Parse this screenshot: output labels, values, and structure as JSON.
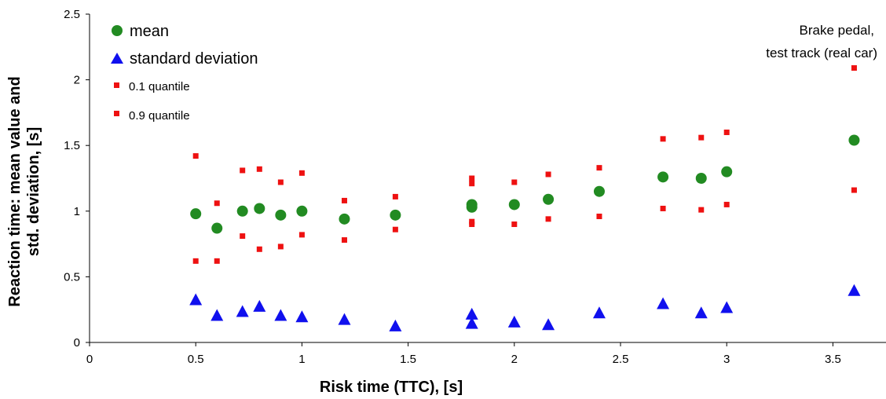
{
  "chart_data": {
    "type": "scatter",
    "xlabel": "Risk time (TTC), [s]",
    "ylabel_lines": [
      "Reaction time: mean value and",
      "std. deviation, [s]"
    ],
    "xlim": [
      0,
      3.75
    ],
    "ylim": [
      0,
      2.5
    ],
    "xticks": [
      "0",
      "0.5",
      "1",
      "1.5",
      "2",
      "2.5",
      "3",
      "3.5"
    ],
    "yticks": [
      "0",
      "0.5",
      "1",
      "1.5",
      "2",
      "2.5"
    ],
    "grid": false,
    "legend_position": "top-left",
    "annotation_lines": [
      "Brake pedal,",
      "test track (real car)"
    ],
    "series": [
      {
        "name": "mean",
        "marker": "circle",
        "color": "#228B22",
        "x": [
          0.5,
          0.6,
          0.72,
          0.8,
          0.9,
          1.0,
          1.2,
          1.44,
          1.8,
          1.8,
          2.0,
          2.16,
          2.4,
          2.7,
          2.88,
          3.0,
          3.6
        ],
        "y": [
          0.98,
          0.87,
          1.0,
          1.02,
          0.97,
          1.0,
          0.94,
          0.97,
          1.05,
          1.03,
          1.05,
          1.09,
          1.15,
          1.26,
          1.25,
          1.3,
          1.54
        ]
      },
      {
        "name": "standard deviation",
        "marker": "triangle",
        "color": "#1010EE",
        "x": [
          0.5,
          0.6,
          0.72,
          0.8,
          0.9,
          1.0,
          1.2,
          1.44,
          1.8,
          1.8,
          2.0,
          2.16,
          2.4,
          2.7,
          2.88,
          3.0,
          3.6
        ],
        "y": [
          0.32,
          0.2,
          0.23,
          0.27,
          0.2,
          0.19,
          0.17,
          0.12,
          0.21,
          0.14,
          0.15,
          0.13,
          0.22,
          0.29,
          0.22,
          0.26,
          0.39
        ]
      },
      {
        "name": "0.1 quantile",
        "marker": "square",
        "color": "#EE1111",
        "x": [
          0.5,
          0.6,
          0.72,
          0.8,
          0.9,
          1.0,
          1.2,
          1.44,
          1.8,
          1.8,
          2.0,
          2.16,
          2.4,
          2.7,
          2.88,
          3.0,
          3.6
        ],
        "y": [
          0.62,
          0.62,
          0.81,
          0.71,
          0.73,
          0.82,
          0.78,
          0.86,
          0.9,
          0.92,
          0.9,
          0.94,
          0.96,
          1.02,
          1.01,
          1.05,
          1.16
        ]
      },
      {
        "name": "0.9 quantile",
        "marker": "square",
        "color": "#EE1111",
        "x": [
          0.5,
          0.6,
          0.72,
          0.8,
          0.9,
          1.0,
          1.2,
          1.44,
          1.8,
          1.8,
          2.0,
          2.16,
          2.4,
          2.7,
          2.88,
          3.0,
          3.6
        ],
        "y": [
          1.42,
          1.06,
          1.31,
          1.32,
          1.22,
          1.29,
          1.08,
          1.11,
          1.25,
          1.21,
          1.22,
          1.28,
          1.33,
          1.55,
          1.56,
          1.6,
          2.09
        ]
      }
    ]
  }
}
